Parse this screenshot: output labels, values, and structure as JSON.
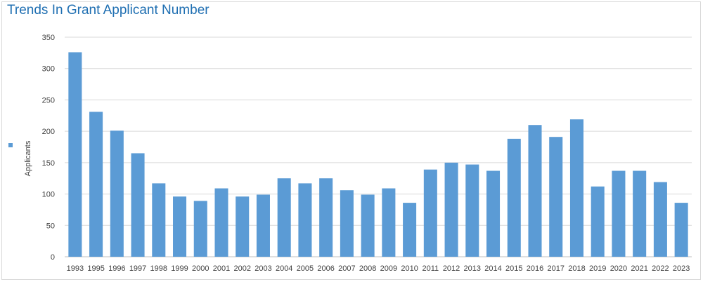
{
  "chart_data": {
    "type": "bar",
    "title": "Trends In Grant Applicant Number",
    "xlabel": "",
    "ylabel": "",
    "ylim": [
      0,
      350
    ],
    "yticks": [
      0,
      50,
      100,
      150,
      200,
      250,
      300,
      350
    ],
    "grid": true,
    "legend_position": "left",
    "categories": [
      "1993",
      "1995",
      "1996",
      "1997",
      "1998",
      "1999",
      "2000",
      "2001",
      "2002",
      "2003",
      "2004",
      "2005",
      "2006",
      "2007",
      "2008",
      "2009",
      "2010",
      "2011",
      "2012",
      "2013",
      "2014",
      "2015",
      "2016",
      "2017",
      "2018",
      "2019",
      "2020",
      "2021",
      "2022",
      "2023"
    ],
    "series": [
      {
        "name": "Applicants",
        "color": "#5b9bd5",
        "values": [
          326,
          231,
          201,
          165,
          117,
          96,
          89,
          109,
          96,
          99,
          125,
          117,
          125,
          106,
          99,
          109,
          86,
          139,
          150,
          147,
          137,
          188,
          210,
          191,
          219,
          112,
          137,
          137,
          119,
          86
        ]
      }
    ]
  }
}
